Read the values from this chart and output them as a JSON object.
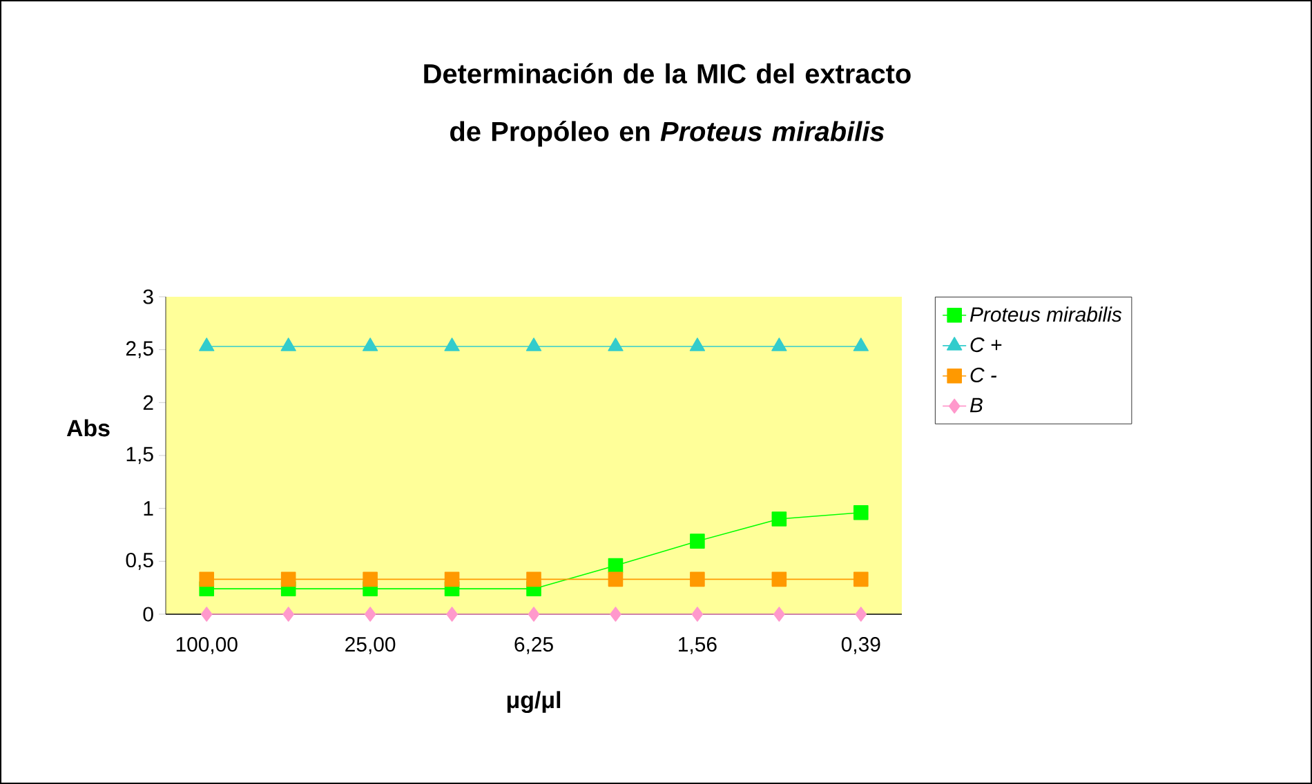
{
  "chart_data": {
    "type": "line",
    "title": "Determinación de la MIC del extracto de Propóleo en *Proteus mirabilis*",
    "xlabel": "μg/μl",
    "ylabel": "Abs",
    "categories": [
      "100,00",
      null,
      "25,00",
      null,
      "6,25",
      null,
      "1,56",
      null,
      "0,39"
    ],
    "ylim": [
      0,
      3
    ],
    "yticks": [
      0,
      {
        "value": 0.5,
        "label": "0,5"
      },
      1,
      {
        "value": 1.5,
        "label": "1,5"
      },
      2,
      {
        "value": 2.5,
        "label": "2,5"
      },
      3
    ],
    "legend": "right",
    "grid": false,
    "line_style": "solid",
    "series": [
      {
        "name": "Proteus mirabilis",
        "color": "#00ff00",
        "marker": "square",
        "values": [
          0.24,
          0.24,
          0.24,
          0.24,
          0.24,
          0.46,
          0.69,
          0.9,
          0.96
        ]
      },
      {
        "name": "C +",
        "color": "#33cccc",
        "marker": "triangle",
        "values": [
          2.53,
          2.53,
          2.53,
          2.53,
          2.53,
          2.53,
          2.53,
          2.53,
          2.53
        ]
      },
      {
        "name": "C -",
        "color": "#ff9900",
        "marker": "square",
        "values": [
          0.33,
          0.33,
          0.33,
          0.33,
          0.33,
          0.33,
          0.33,
          0.33,
          0.33
        ]
      },
      {
        "name": "B",
        "color": "#ff99cc",
        "marker": "diamond",
        "values": [
          0,
          0,
          0,
          0,
          0,
          0,
          0,
          0,
          0
        ]
      }
    ]
  }
}
